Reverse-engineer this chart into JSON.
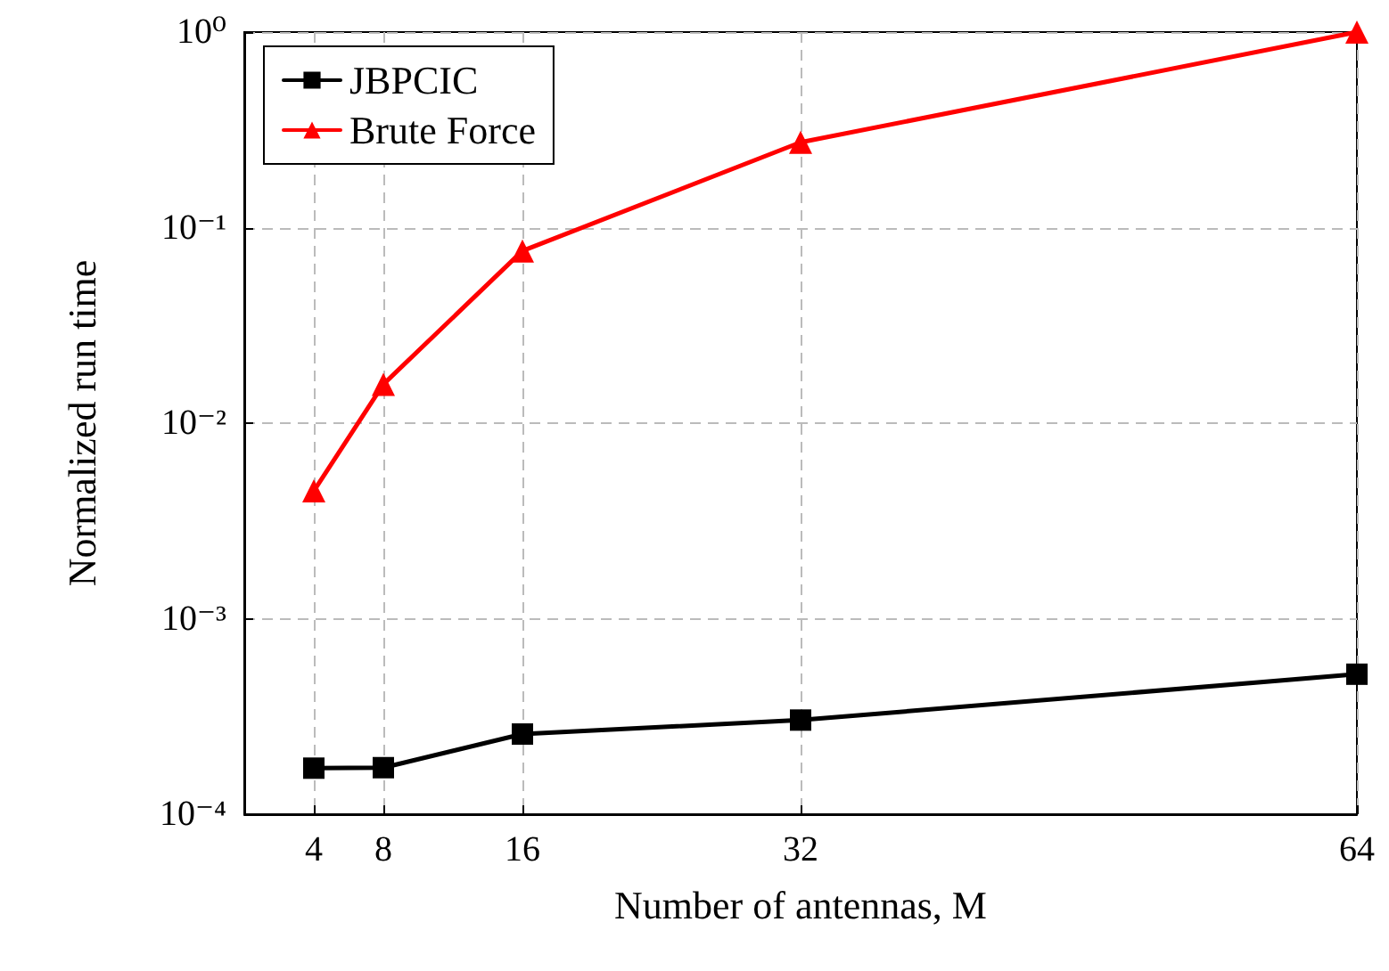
{
  "chart_data": {
    "type": "line",
    "xlabel": "Number of antennas, M",
    "ylabel": "Normalized run time",
    "xlim": [
      0,
      64
    ],
    "xticks": [
      4,
      8,
      16,
      32,
      64
    ],
    "ylim": [
      0.0001,
      1
    ],
    "yticks": [
      {
        "value": 0.0001,
        "label": "10⁻⁴"
      },
      {
        "value": 0.001,
        "label": "10⁻³"
      },
      {
        "value": 0.01,
        "label": "10⁻²"
      },
      {
        "value": 0.1,
        "label": "10⁻¹"
      },
      {
        "value": 1,
        "label": "10⁰"
      }
    ],
    "log": "y",
    "grid": true,
    "legend": "top left",
    "line_style": "solid",
    "x": [
      4,
      8,
      16,
      32,
      64
    ],
    "series": [
      {
        "name": "JBPCIC",
        "color": "#000000",
        "marker": "square",
        "values": [
          0.000172,
          0.000173,
          0.000257,
          0.000303,
          0.00052
        ]
      },
      {
        "name": "Brute Force",
        "color": "#ff0000",
        "marker": "triangle",
        "values": [
          0.0045,
          0.0158,
          0.076,
          0.273,
          1
        ]
      }
    ]
  }
}
